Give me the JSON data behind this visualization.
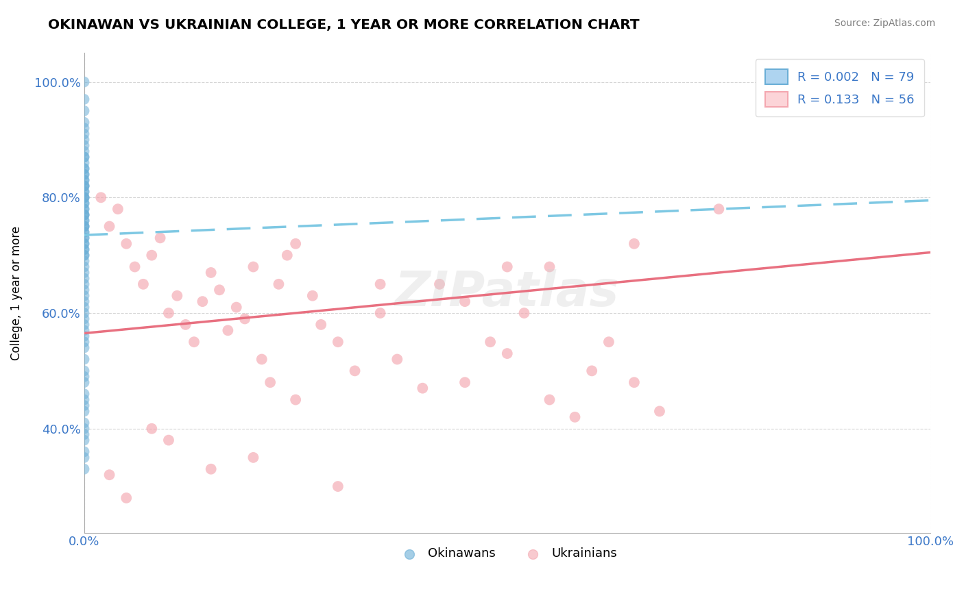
{
  "title": "OKINAWAN VS UKRAINIAN COLLEGE, 1 YEAR OR MORE CORRELATION CHART",
  "source_text": "Source: ZipAtlas.com",
  "ylabel": "College, 1 year or more",
  "xlim": [
    0.0,
    1.0
  ],
  "ylim": [
    0.22,
    1.05
  ],
  "blue_color": "#6aaed6",
  "blue_fill": "#aed4f0",
  "pink_color": "#f4a7b0",
  "pink_fill": "#fcd4d8",
  "trend_blue": "#7ec8e3",
  "trend_pink": "#e87080",
  "watermark": "ZIPatlas",
  "legend_r1": "0.002",
  "legend_n1": "79",
  "legend_r2": "0.133",
  "legend_n2": "56",
  "okinawan_x": [
    0.0,
    0.0,
    0.0,
    0.0,
    0.0,
    0.0,
    0.0,
    0.0,
    0.0,
    0.0,
    0.0,
    0.0,
    0.0,
    0.0,
    0.0,
    0.0,
    0.0,
    0.0,
    0.0,
    0.0,
    0.0,
    0.0,
    0.0,
    0.0,
    0.0,
    0.0,
    0.0,
    0.0,
    0.0,
    0.0,
    0.0,
    0.0,
    0.0,
    0.0,
    0.0,
    0.0,
    0.0,
    0.0,
    0.0,
    0.0,
    0.0,
    0.0,
    0.0,
    0.0,
    0.0,
    0.0,
    0.0,
    0.0,
    0.0,
    0.0,
    0.0,
    0.0,
    0.0,
    0.0,
    0.0,
    0.0,
    0.0,
    0.0,
    0.0,
    0.0,
    0.0,
    0.0,
    0.0,
    0.0,
    0.0,
    0.0,
    0.0,
    0.0,
    0.0,
    0.0,
    0.0,
    0.0,
    0.0,
    0.0,
    0.0,
    0.0,
    0.0,
    0.0,
    0.0
  ],
  "okinawan_y": [
    1.0,
    0.97,
    0.95,
    0.93,
    0.92,
    0.91,
    0.9,
    0.89,
    0.88,
    0.87,
    0.87,
    0.86,
    0.85,
    0.85,
    0.84,
    0.84,
    0.83,
    0.83,
    0.82,
    0.82,
    0.82,
    0.81,
    0.81,
    0.8,
    0.8,
    0.8,
    0.79,
    0.79,
    0.78,
    0.78,
    0.77,
    0.77,
    0.77,
    0.76,
    0.76,
    0.75,
    0.75,
    0.75,
    0.74,
    0.74,
    0.73,
    0.73,
    0.72,
    0.72,
    0.71,
    0.71,
    0.7,
    0.7,
    0.69,
    0.68,
    0.67,
    0.66,
    0.65,
    0.64,
    0.63,
    0.62,
    0.61,
    0.6,
    0.59,
    0.58,
    0.57,
    0.56,
    0.55,
    0.54,
    0.52,
    0.5,
    0.49,
    0.48,
    0.46,
    0.45,
    0.44,
    0.43,
    0.41,
    0.4,
    0.39,
    0.38,
    0.36,
    0.35,
    0.33
  ],
  "ukrainian_x": [
    0.02,
    0.03,
    0.04,
    0.05,
    0.06,
    0.07,
    0.08,
    0.09,
    0.1,
    0.11,
    0.12,
    0.13,
    0.14,
    0.15,
    0.16,
    0.17,
    0.18,
    0.19,
    0.2,
    0.21,
    0.22,
    0.23,
    0.24,
    0.25,
    0.27,
    0.28,
    0.3,
    0.32,
    0.35,
    0.37,
    0.4,
    0.42,
    0.45,
    0.48,
    0.5,
    0.52,
    0.55,
    0.58,
    0.6,
    0.62,
    0.65,
    0.68,
    0.5,
    0.3,
    0.2,
    0.15,
    0.1,
    0.08,
    0.05,
    0.03,
    0.25,
    0.35,
    0.45,
    0.55,
    0.65,
    0.75
  ],
  "ukrainian_y": [
    0.8,
    0.75,
    0.78,
    0.72,
    0.68,
    0.65,
    0.7,
    0.73,
    0.6,
    0.63,
    0.58,
    0.55,
    0.62,
    0.67,
    0.64,
    0.57,
    0.61,
    0.59,
    0.68,
    0.52,
    0.48,
    0.65,
    0.7,
    0.45,
    0.63,
    0.58,
    0.55,
    0.5,
    0.6,
    0.52,
    0.47,
    0.65,
    0.48,
    0.55,
    0.53,
    0.6,
    0.45,
    0.42,
    0.5,
    0.55,
    0.48,
    0.43,
    0.68,
    0.3,
    0.35,
    0.33,
    0.38,
    0.4,
    0.28,
    0.32,
    0.72,
    0.65,
    0.62,
    0.68,
    0.72,
    0.78
  ],
  "blue_trend_x": [
    0.0,
    1.0
  ],
  "blue_trend_y": [
    0.735,
    0.795
  ],
  "pink_trend_x": [
    0.0,
    1.0
  ],
  "pink_trend_y": [
    0.565,
    0.705
  ]
}
